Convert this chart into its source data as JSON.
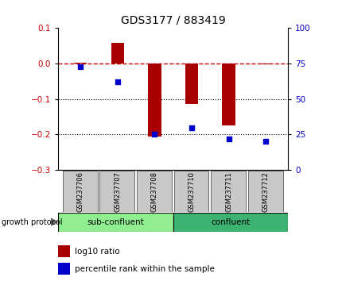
{
  "title": "GDS3177 / 883419",
  "samples": [
    "GSM237706",
    "GSM237707",
    "GSM237708",
    "GSM237710",
    "GSM237711",
    "GSM237712"
  ],
  "log10_ratio": [
    0.002,
    0.058,
    -0.205,
    -0.115,
    -0.175,
    -0.003
  ],
  "percentile_rank": [
    73,
    62,
    25,
    30,
    22,
    20
  ],
  "ylim_left": [
    -0.3,
    0.1
  ],
  "ylim_right": [
    0,
    100
  ],
  "yticks_left": [
    -0.3,
    -0.2,
    -0.1,
    0.0,
    0.1
  ],
  "yticks_right": [
    0,
    25,
    50,
    75,
    100
  ],
  "bar_color": "#a80000",
  "dot_color": "#0000cc",
  "zero_line_color": "#cc0000",
  "groups": [
    {
      "label": "sub-confluent",
      "start": 0,
      "end": 3,
      "color": "#90ee90"
    },
    {
      "label": "confluent",
      "start": 3,
      "end": 6,
      "color": "#3cb371"
    }
  ],
  "group_label": "growth protocol",
  "legend_bar_label": "log10 ratio",
  "legend_dot_label": "percentile rank within the sample",
  "bar_width": 0.35
}
